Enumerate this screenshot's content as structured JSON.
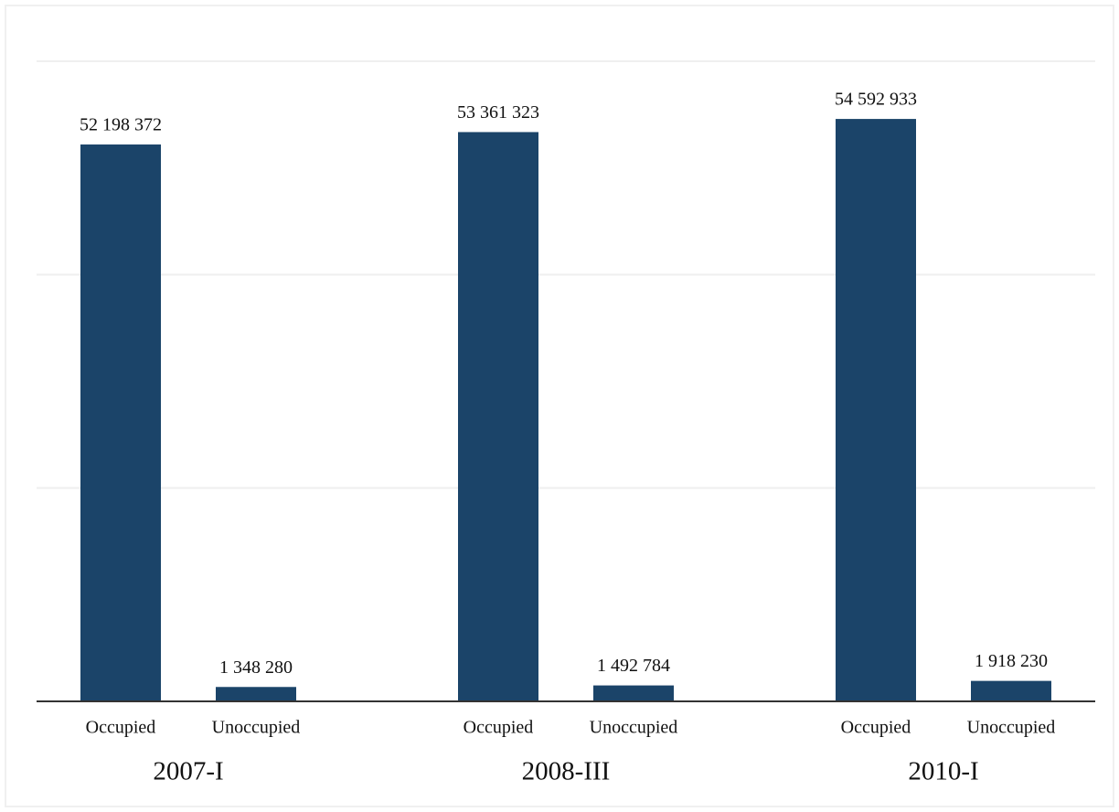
{
  "chart_data": {
    "type": "bar",
    "categories": [
      "2007-I",
      "2008-III",
      "2010-I"
    ],
    "series": [
      {
        "name": "Occupied",
        "color": "#1b4469",
        "values": [
          52198372,
          53361323,
          54592933
        ],
        "value_labels": [
          "52 198 372",
          "53 361 323",
          "54 592 933"
        ]
      },
      {
        "name": "Unoccupied",
        "color": "#1b4469",
        "values": [
          1348280,
          1492784,
          1918230
        ],
        "value_labels": [
          "1 348 280",
          "1 492 784",
          "1 918 230"
        ]
      }
    ],
    "ylim": [
      0,
      60000000
    ],
    "yticks": [
      0,
      20000000,
      40000000,
      60000000
    ],
    "grid": true
  }
}
